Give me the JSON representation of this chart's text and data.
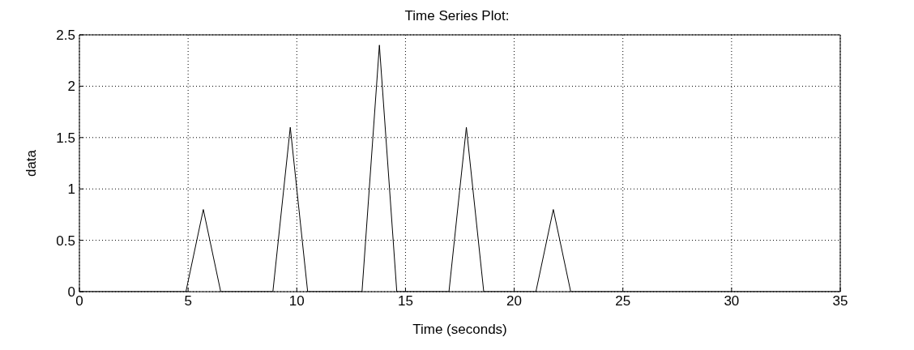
{
  "chart_data": {
    "type": "line",
    "title": "Time Series Plot:",
    "xlabel": "Time (seconds)",
    "ylabel": "data",
    "x": [
      0,
      4.9,
      5.7,
      6.5,
      8.9,
      9.7,
      10.5,
      13,
      13.8,
      14.6,
      17,
      17.8,
      18.6,
      21,
      21.8,
      22.6,
      35
    ],
    "series": [
      {
        "color": "#000000",
        "values": [
          0,
          0,
          0.8,
          0,
          0,
          1.6,
          0,
          0,
          2.4,
          0,
          0,
          1.6,
          0,
          0,
          0.8,
          0,
          0
        ]
      }
    ],
    "xlim": [
      0,
      35
    ],
    "xticks": [
      0,
      5,
      10,
      15,
      20,
      25,
      30,
      35
    ],
    "ylim": [
      0,
      2.5
    ],
    "yticks": [
      0,
      0.5,
      1,
      1.5,
      2,
      2.5
    ],
    "grid": true,
    "legend": false,
    "marker": "none",
    "line_style": "solid"
  }
}
